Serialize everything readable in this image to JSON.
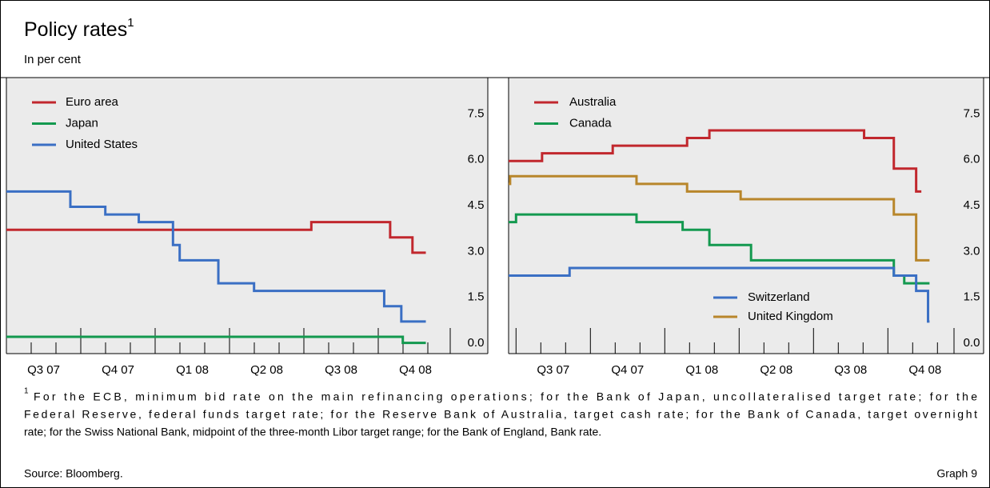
{
  "title": "Policy rates",
  "title_note": "1",
  "subtitle": "In per cent",
  "chart_data": [
    {
      "type": "step",
      "xlim": [
        0,
        6
      ],
      "ylim": [
        -0.05,
        8.95
      ],
      "xticks": [
        {
          "value": 0.5,
          "label": "Q3 07"
        },
        {
          "value": 1.5,
          "label": "Q4 07"
        },
        {
          "value": 2.5,
          "label": "Q1 08"
        },
        {
          "value": 3.5,
          "label": "Q2 08"
        },
        {
          "value": 4.5,
          "label": "Q3 08"
        },
        {
          "value": 5.5,
          "label": "Q4 08"
        }
      ],
      "yticks": [
        {
          "value": 0,
          "label": "0.0"
        },
        1.5,
        {
          "value": 3,
          "label": "3.0"
        },
        4.5,
        {
          "value": 6,
          "label": "6.0"
        },
        7.5
      ],
      "series": [
        {
          "name": "Euro area",
          "color": "#c1272d",
          "legend": "upper left",
          "x": [
            0,
            4.1,
            5.16,
            5.46,
            5.64
          ],
          "values": [
            4.0,
            4.25,
            3.75,
            3.25,
            3.25
          ]
        },
        {
          "name": "Japan",
          "color": "#13994f",
          "legend": "upper left",
          "x": [
            0,
            5.33,
            5.64
          ],
          "values": [
            0.5,
            0.3,
            0.3
          ]
        },
        {
          "name": "United States",
          "color": "#3a6fc4",
          "legend": "upper left",
          "x": [
            0,
            0.86,
            1.33,
            1.78,
            2.24,
            2.33,
            2.85,
            3.33,
            5.08,
            5.31,
            5.64
          ],
          "values": [
            5.25,
            4.75,
            4.5,
            4.25,
            3.5,
            3.0,
            2.25,
            2.0,
            1.5,
            1.0,
            1.0
          ]
        }
      ]
    },
    {
      "type": "step",
      "xlim": [
        -0.1,
        5.9
      ],
      "ylim": [
        -0.05,
        8.95
      ],
      "xticks": [
        {
          "value": 0.5,
          "label": "Q3 07"
        },
        {
          "value": 1.5,
          "label": "Q4 07"
        },
        {
          "value": 2.5,
          "label": "Q1 08"
        },
        {
          "value": 3.5,
          "label": "Q2 08"
        },
        {
          "value": 4.5,
          "label": "Q3 08"
        },
        {
          "value": 5.5,
          "label": "Q4 08"
        }
      ],
      "yticks": [
        {
          "value": 0,
          "label": "0.0"
        },
        1.5,
        {
          "value": 3,
          "label": "3.0"
        },
        4.5,
        {
          "value": 6,
          "label": "6.0"
        },
        7.5
      ],
      "series": [
        {
          "name": "Australia",
          "color": "#c1272d",
          "legend": "upper left",
          "x": [
            -0.1,
            0.35,
            1.3,
            2.3,
            2.6,
            4.68,
            5.08,
            5.38,
            5.45
          ],
          "values": [
            6.25,
            6.5,
            6.75,
            7.0,
            7.25,
            7.0,
            6.0,
            5.25,
            5.25
          ]
        },
        {
          "name": "Canada",
          "color": "#13994f",
          "legend": "upper left",
          "x": [
            -0.1,
            0.0,
            1.62,
            2.24,
            2.6,
            3.16,
            5.08,
            5.22,
            5.56
          ],
          "values": [
            4.25,
            4.5,
            4.25,
            4.0,
            3.5,
            3.0,
            2.5,
            2.25,
            2.25
          ]
        },
        {
          "name": "Switzerland",
          "color": "#3a6fc4",
          "legend": "lower right",
          "x": [
            -0.1,
            0.72,
            5.08,
            5.38,
            5.54,
            5.56
          ],
          "values": [
            2.5,
            2.75,
            2.5,
            2.0,
            1.0,
            1.0
          ]
        },
        {
          "name": "United Kingdom",
          "color": "#b8862b",
          "legend": "lower right",
          "x": [
            -0.1,
            -0.08,
            1.62,
            2.3,
            3.02,
            5.08,
            5.38,
            5.56
          ],
          "values": [
            5.5,
            5.75,
            5.5,
            5.25,
            5.0,
            4.5,
            3.0,
            3.0
          ]
        }
      ]
    }
  ],
  "footnote": {
    "marker": "1",
    "lines": [
      "For the ECB, minimum bid rate on the main refinancing operations; for the Bank of Japan, uncollateralised target rate; for the",
      "Federal Reserve, federal funds target rate; for the Reserve Bank of Australia, target cash rate; for the Bank of Canada, target overnight",
      "rate; for the Swiss National Bank, midpoint of the three-month Libor target range; for the Bank of England, Bank rate."
    ]
  },
  "source": "Source: Bloomberg.",
  "graph_label": "Graph 9"
}
